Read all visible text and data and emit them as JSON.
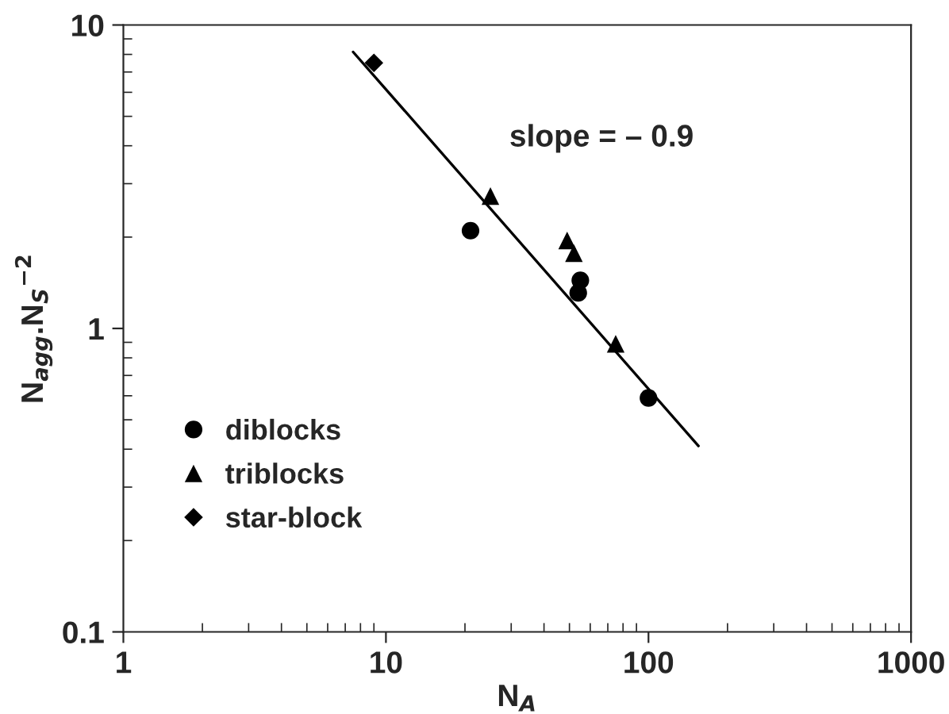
{
  "chart_data": {
    "type": "scatter",
    "xlabel": "N$_{A}$",
    "ylabel": "N$_{agg}$.N$_{S}$$^{−2}$",
    "annotations": [
      "slope = – 0.9"
    ],
    "log": "xy",
    "grid": false,
    "legend": "lower left",
    "xlim": [
      1,
      1000
    ],
    "xticks": [
      1,
      10,
      100,
      1000
    ],
    "ylim": [
      0.1,
      10
    ],
    "yticks": [
      0.1,
      1,
      10
    ],
    "series": [
      {
        "name": "diblocks",
        "color": "#000000",
        "marker": "circle",
        "x": [
          21,
          55,
          54,
          100
        ],
        "values": [
          2.1,
          1.44,
          1.31,
          0.59
        ]
      },
      {
        "name": "triblocks",
        "color": "#000000",
        "marker": "triangle",
        "x": [
          25,
          49,
          52,
          75
        ],
        "values": [
          2.73,
          1.95,
          1.77,
          0.89
        ]
      },
      {
        "name": "star-block",
        "color": "#000000",
        "marker": "diamond",
        "x": [
          9
        ],
        "values": [
          7.5
        ]
      },
      {
        "type": "line",
        "color": "#000000",
        "marker": "none",
        "line_style": "solid",
        "x": [
          7.5,
          155
        ],
        "values": [
          8.15,
          0.41
        ]
      }
    ]
  }
}
